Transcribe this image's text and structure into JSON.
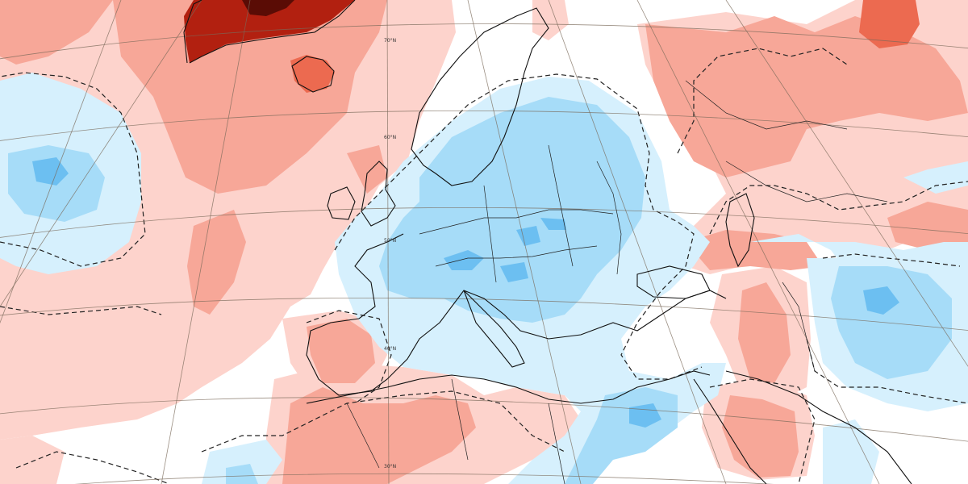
{
  "map": {
    "colors": {
      "background": "#ffffff",
      "warm_1": "#fdd3cc",
      "warm_2": "#f7a798",
      "warm_3": "#ec6a50",
      "warm_4": "#b22010",
      "warm_5": "#5a0c05",
      "cool_1": "#d6f0fd",
      "cool_2": "#a6dcf8",
      "cool_3": "#6cbff1",
      "cool_4": "#2b9ae4",
      "coastline": "#111111",
      "graticule": "#7a6a5a"
    },
    "latitude_labels": [
      {
        "id": "lat-70",
        "text": "70°N"
      },
      {
        "id": "lat-60",
        "text": "60°N"
      },
      {
        "id": "lat-50",
        "text": "50°N"
      },
      {
        "id": "lat-40",
        "text": "40°N"
      },
      {
        "id": "lat-30",
        "text": "30°N"
      }
    ]
  }
}
